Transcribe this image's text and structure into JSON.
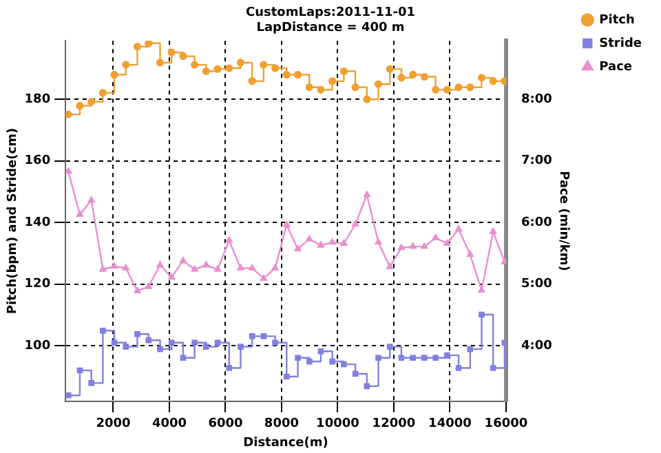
{
  "chart_data": {
    "type": "step",
    "title": "CustomLaps:2011-11-01",
    "subtitle": "LapDistance = 400 m",
    "xlabel": "Distance(m)",
    "ylabel": "Pitch(bpm) and Stride(cm)",
    "y2label": "Pace (min/km)",
    "x": [
      400,
      810,
      1220,
      1630,
      2040,
      2450,
      2860,
      3260,
      3670,
      4080,
      4490,
      4900,
      5310,
      5720,
      6130,
      6540,
      6950,
      7360,
      7770,
      8180,
      8580,
      8990,
      9400,
      9810,
      10220,
      10630,
      11040,
      11450,
      11860,
      12270,
      12680,
      13090,
      13490,
      13900,
      14310,
      14720,
      15130,
      15540,
      15950
    ],
    "series": [
      {
        "name": "Pitch",
        "color": "#f0a030",
        "marker": "circle",
        "values": [
          175.1,
          177.9,
          179.2,
          182.1,
          188,
          191.2,
          197.1,
          198.2,
          191.9,
          195.2,
          194,
          191.2,
          189.1,
          189.8,
          190.1,
          191.9,
          185.9,
          191.2,
          190.1,
          188,
          188,
          183.9,
          183.1,
          185.9,
          189.1,
          183.9,
          180,
          184.9,
          189.8,
          187,
          188,
          187.3,
          183.1,
          183.1,
          183.9,
          183.9,
          187,
          185.9,
          185.9
        ]
      },
      {
        "name": "Stride",
        "color": "#8080e0",
        "marker": "square",
        "values": [
          83.9,
          92,
          87.9,
          104.9,
          101,
          99.7,
          103.8,
          101.8,
          98.9,
          101,
          96.1,
          101,
          99.7,
          101,
          92.8,
          99.7,
          103.1,
          103.1,
          101,
          90,
          96.1,
          94.9,
          98.2,
          94.9,
          94,
          90.9,
          86.9,
          96.1,
          99.7,
          96.1,
          96.1,
          96.1,
          96.1,
          96.9,
          92.8,
          98.9,
          110.1,
          92.8,
          101
        ]
      },
      {
        "name": "Pace",
        "color": "#e890d0",
        "type": "line",
        "axis": "y2",
        "marker": "triangle",
        "values": [
          6.83,
          6.13,
          6.36,
          5.24,
          5.29,
          5.26,
          4.89,
          4.96,
          5.31,
          5.11,
          5.38,
          5.24,
          5.31,
          5.24,
          5.71,
          5.26,
          5.26,
          5.09,
          5.26,
          5.96,
          5.57,
          5.73,
          5.63,
          5.68,
          5.66,
          5.97,
          6.45,
          5.68,
          5.28,
          5.59,
          5.61,
          5.61,
          5.75,
          5.66,
          5.89,
          5.48,
          4.9,
          5.85,
          5.36
        ]
      }
    ],
    "xlim": [
      300,
      16000
    ],
    "xticks": [
      2000,
      4000,
      6000,
      8000,
      10000,
      12000,
      14000,
      16000
    ],
    "ylim": [
      82,
      199
    ],
    "yticks": [
      100,
      120,
      140,
      160,
      180
    ],
    "y2lim": [
      3.1,
      8.95
    ],
    "y2ticks": [
      {
        "value": 4,
        "label": "4:00"
      },
      {
        "value": 5,
        "label": "5:00"
      },
      {
        "value": 6,
        "label": "6:00"
      },
      {
        "value": 7,
        "label": "7:00"
      },
      {
        "value": 8,
        "label": "8:00"
      }
    ],
    "grid": true,
    "legend": "top right",
    "line_style": "solid"
  }
}
